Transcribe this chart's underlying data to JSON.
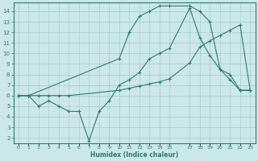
{
  "xlabel": "Humidex (Indice chaleur)",
  "bg_color": "#cce8e8",
  "grid_color": "#aacccc",
  "line_color": "#2d7d6e",
  "xlim": [
    -0.5,
    23.5
  ],
  "ylim": [
    1.5,
    14.8
  ],
  "yticks": [
    2,
    3,
    4,
    5,
    6,
    7,
    8,
    9,
    10,
    11,
    12,
    13,
    14
  ],
  "xticks": [
    0,
    1,
    2,
    3,
    4,
    5,
    6,
    7,
    8,
    9,
    10,
    11,
    12,
    13,
    14,
    15,
    17,
    18,
    19,
    20,
    21,
    22,
    23
  ],
  "xtick_labels": [
    "0",
    "1",
    "2",
    "3",
    "4",
    "5",
    "6",
    "7",
    "8",
    "9",
    "10",
    "11",
    "12",
    "13",
    "14",
    "15",
    "17",
    "18",
    "19",
    "20",
    "21",
    "22",
    "23"
  ],
  "line1_x": [
    0,
    1,
    2,
    3,
    4,
    5,
    6,
    7,
    8,
    9,
    10,
    11,
    12,
    13,
    14,
    15,
    17,
    18,
    19,
    20,
    21,
    22,
    23
  ],
  "line1_y": [
    6.0,
    6.0,
    5.0,
    5.5,
    5.0,
    4.5,
    4.5,
    1.7,
    4.5,
    5.5,
    7.0,
    7.5,
    8.2,
    9.5,
    10.0,
    10.5,
    14.3,
    11.5,
    9.8,
    8.5,
    7.5,
    6.5,
    6.5
  ],
  "line2_x": [
    0,
    1,
    2,
    3,
    4,
    5,
    10,
    11,
    12,
    13,
    14,
    15,
    17,
    18,
    19,
    20,
    21,
    22,
    23
  ],
  "line2_y": [
    6.0,
    6.0,
    6.0,
    6.0,
    6.0,
    6.0,
    6.5,
    6.7,
    6.9,
    7.1,
    7.3,
    7.6,
    9.1,
    10.6,
    11.2,
    11.7,
    12.2,
    12.7,
    6.5
  ],
  "line3_x": [
    0,
    1,
    10,
    11,
    12,
    13,
    14,
    15,
    17,
    18,
    19,
    20,
    21,
    22,
    23
  ],
  "line3_y": [
    6.0,
    6.0,
    9.5,
    12.0,
    13.5,
    14.0,
    14.5,
    14.5,
    14.5,
    14.0,
    13.0,
    8.5,
    8.0,
    6.5,
    6.5
  ]
}
